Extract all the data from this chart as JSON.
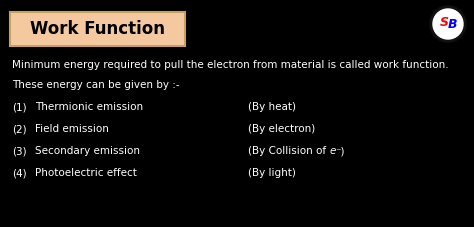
{
  "title": "Work Function",
  "bg_color": "#000000",
  "title_box_facecolor": "#f5c9a0",
  "title_box_edgecolor": "#c8a060",
  "title_color": "#000000",
  "text_color": "#ffffff",
  "line1": "Minimum energy required to pull the electron from material is called work function.",
  "line2": "These energy can be given by :-",
  "items": [
    {
      "num": "(1)",
      "left": "Thermionic emission",
      "right": "(By heat)"
    },
    {
      "num": "(2)",
      "left": "Field emission",
      "right": "(By electron)"
    },
    {
      "num": "(3)",
      "left": "Secondary emission",
      "right": null
    },
    {
      "num": "(4)",
      "left": "Photoelectric effect",
      "right": "(By light)"
    }
  ],
  "item3_right_prefix": "(By Collision of ",
  "item3_right_italic": "e",
  "item3_right_suffix": "⁻)",
  "fig_width": 4.74,
  "fig_height": 2.27,
  "dpi": 100
}
